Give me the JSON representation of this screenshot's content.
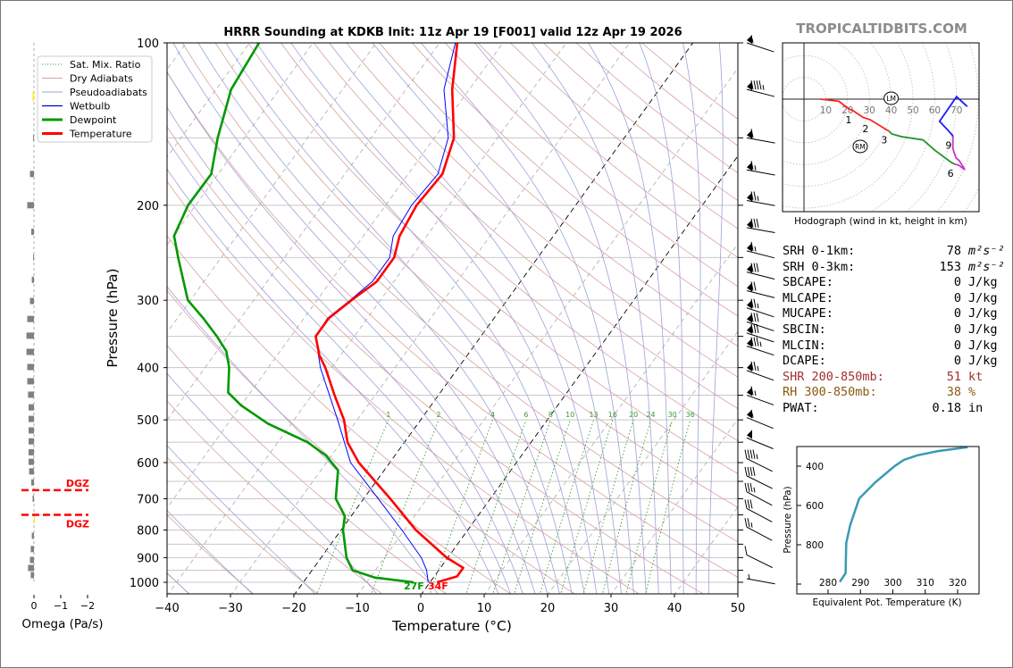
{
  "watermark": "TROPICALTIDBITS.COM",
  "colors": {
    "temperature": "#ff0000",
    "dewpoint": "#009900",
    "wetbulb": "#0000ff",
    "dry_adiabat": "#d9a0a0",
    "moist_adiabat": "#a0a0d8",
    "mixing_ratio": "#3a9a3a",
    "theta_e": "#3a9ab4"
  },
  "legend": {
    "items": [
      {
        "label": "Sat. Mix. Ratio",
        "style": "dotted-green"
      },
      {
        "label": "Dry Adiabats",
        "style": "thin-red"
      },
      {
        "label": "Pseudoadiabats",
        "style": "thin-blue"
      },
      {
        "label": "Wetbulb",
        "style": "blue"
      },
      {
        "label": "Dewpoint",
        "style": "thick-green"
      },
      {
        "label": "Temperature",
        "style": "thick-red"
      }
    ]
  },
  "surface_labels": {
    "dewpoint": "27F",
    "temperature": "34F"
  },
  "omega_panel": {
    "xlabel": "Omega (Pa/s)",
    "xticks": [
      {
        "v": 0,
        "label": "0"
      },
      {
        "v": -1,
        "label": "−1"
      },
      {
        "v": -2,
        "label": "−2"
      }
    ],
    "dgz_label": "DGZ",
    "dgz_bounds_hpa": [
      675,
      750
    ],
    "bars": [
      {
        "p": 125,
        "omega": 0.05,
        "color": "#ffee00"
      },
      {
        "p": 150,
        "omega": 0.03
      },
      {
        "p": 175,
        "omega": 0.15
      },
      {
        "p": 200,
        "omega": 0.25
      },
      {
        "p": 224,
        "omega": 0.1
      },
      {
        "p": 250,
        "omega": 0.03
      },
      {
        "p": 275,
        "omega": 0.08
      },
      {
        "p": 301,
        "omega": 0.15
      },
      {
        "p": 325,
        "omega": 0.25
      },
      {
        "p": 349,
        "omega": 0.28
      },
      {
        "p": 374,
        "omega": 0.28
      },
      {
        "p": 399,
        "omega": 0.25
      },
      {
        "p": 424,
        "omega": 0.25
      },
      {
        "p": 449,
        "omega": 0.22
      },
      {
        "p": 474,
        "omega": 0.2
      },
      {
        "p": 498,
        "omega": 0.2
      },
      {
        "p": 523,
        "omega": 0.2
      },
      {
        "p": 548,
        "omega": 0.2
      },
      {
        "p": 574,
        "omega": 0.2
      },
      {
        "p": 598,
        "omega": 0.2
      },
      {
        "p": 623,
        "omega": 0.18
      },
      {
        "p": 653,
        "omega": 0.1
      },
      {
        "p": 700,
        "omega": 0.05
      },
      {
        "p": 760,
        "omega": -0.03,
        "color": "#ffee00"
      },
      {
        "p": 820,
        "omega": 0.08
      },
      {
        "p": 868,
        "omega": 0.12
      },
      {
        "p": 909,
        "omega": 0.15
      },
      {
        "p": 941,
        "omega": 0.22
      },
      {
        "p": 970,
        "omega": 0.12
      }
    ]
  },
  "chart_data": [
    {
      "type": "line",
      "name": "skew-t",
      "title": "HRRR Sounding at KDKB Init: 11z Apr 19 [F001] valid 12z Apr 19 2026",
      "xlabel": "Temperature (°C)",
      "ylabel": "Pressure (hPa)",
      "xlim": [
        -40,
        50
      ],
      "ylim": [
        1050,
        100
      ],
      "xticks": [
        {
          "v": -40,
          "label": "−40"
        },
        {
          "v": -30,
          "label": "−30"
        },
        {
          "v": -20,
          "label": "−20"
        },
        {
          "v": -10,
          "label": "−10"
        },
        {
          "v": 0,
          "label": "0"
        },
        {
          "v": 10,
          "label": "10"
        },
        {
          "v": 20,
          "label": "20"
        },
        {
          "v": 30,
          "label": "30"
        },
        {
          "v": 40,
          "label": "40"
        },
        {
          "v": 50,
          "label": "50"
        }
      ],
      "yticks": [
        {
          "v": 100,
          "label": "100"
        },
        {
          "v": 200,
          "label": "200"
        },
        {
          "v": 300,
          "label": "300"
        },
        {
          "v": 400,
          "label": "400"
        },
        {
          "v": 500,
          "label": "500"
        },
        {
          "v": 600,
          "label": "600"
        },
        {
          "v": 700,
          "label": "700"
        },
        {
          "v": 800,
          "label": "800"
        },
        {
          "v": 900,
          "label": "900"
        },
        {
          "v": 1000,
          "label": "1000"
        }
      ],
      "isobars": [
        100,
        150,
        200,
        250,
        300,
        350,
        400,
        450,
        500,
        550,
        600,
        650,
        700,
        750,
        800,
        850,
        900,
        950,
        1000
      ],
      "highlight_isotherms": [
        -20,
        0
      ],
      "mixing_ratio_labels": [
        {
          "w": 1,
          "label": "1"
        },
        {
          "w": 2,
          "label": "2"
        },
        {
          "w": 4,
          "label": "4"
        },
        {
          "w": 6,
          "label": "6"
        },
        {
          "w": 8,
          "label": "8"
        },
        {
          "w": 10,
          "label": "10"
        },
        {
          "w": 13,
          "label": "13"
        },
        {
          "w": 16,
          "label": "16"
        },
        {
          "w": 20,
          "label": "20"
        },
        {
          "w": 24,
          "label": "24"
        },
        {
          "w": 30,
          "label": "30"
        },
        {
          "w": 36,
          "label": "36"
        }
      ],
      "series": [
        {
          "name": "Temperature",
          "points": [
            [
              100,
              -57.2
            ],
            [
              122,
              -52.7
            ],
            [
              150,
              -46.9
            ],
            [
              175,
              -44.6
            ],
            [
              200,
              -45.1
            ],
            [
              228,
              -44.3
            ],
            [
              250,
              -42.7
            ],
            [
              277,
              -42.7
            ],
            [
              299,
              -44.5
            ],
            [
              324,
              -46.1
            ],
            [
              350,
              -46.1
            ],
            [
              380,
              -43.3
            ],
            [
              400,
              -41
            ],
            [
              450,
              -36.4
            ],
            [
              500,
              -32.1
            ],
            [
              550,
              -29
            ],
            [
              600,
              -24.9
            ],
            [
              700,
              -15.8
            ],
            [
              800,
              -8.2
            ],
            [
              900,
              -0.2
            ],
            [
              940,
              3.6
            ],
            [
              975,
              3.6
            ],
            [
              1000,
              1.1
            ]
          ]
        },
        {
          "name": "Wetbulb",
          "points": [
            [
              100,
              -57.5
            ],
            [
              122,
              -54
            ],
            [
              150,
              -47.8
            ],
            [
              175,
              -45.3
            ],
            [
              200,
              -45.9
            ],
            [
              228,
              -45.3
            ],
            [
              250,
              -43.4
            ],
            [
              277,
              -43.4
            ],
            [
              300,
              -44.8
            ],
            [
              324,
              -46.3
            ],
            [
              350,
              -46.1
            ],
            [
              400,
              -41.8
            ],
            [
              500,
              -33.1
            ],
            [
              600,
              -26.2
            ],
            [
              700,
              -17.7
            ],
            [
              800,
              -10.4
            ],
            [
              900,
              -4.2
            ],
            [
              950,
              -1.9
            ],
            [
              1000,
              -0.3
            ]
          ]
        },
        {
          "name": "Dewpoint",
          "points": [
            [
              100,
              -88.5
            ],
            [
              122,
              -87.6
            ],
            [
              150,
              -84.2
            ],
            [
              175,
              -81.1
            ],
            [
              200,
              -81.2
            ],
            [
              228,
              -79.9
            ],
            [
              250,
              -76.8
            ],
            [
              300,
              -70.4
            ],
            [
              324,
              -65.9
            ],
            [
              350,
              -61.7
            ],
            [
              373,
              -58.5
            ],
            [
              400,
              -56.2
            ],
            [
              445,
              -53.5
            ],
            [
              470,
              -50
            ],
            [
              508,
              -43.7
            ],
            [
              550,
              -35.3
            ],
            [
              582,
              -30.9
            ],
            [
              620,
              -27.3
            ],
            [
              700,
              -24.4
            ],
            [
              754,
              -21
            ],
            [
              800,
              -19.7
            ],
            [
              900,
              -16
            ],
            [
              950,
              -13.6
            ],
            [
              980,
              -9.3
            ],
            [
              1000,
              -2.6
            ]
          ]
        }
      ],
      "wind_barbs": [
        {
          "p": 100,
          "kt": 55,
          "dir": 280
        },
        {
          "p": 122,
          "kt": 95,
          "dir": 275
        },
        {
          "p": 150,
          "kt": 60,
          "dir": 270
        },
        {
          "p": 172,
          "kt": 65,
          "dir": 270
        },
        {
          "p": 196,
          "kt": 75,
          "dir": 270
        },
        {
          "p": 220,
          "kt": 80,
          "dir": 270
        },
        {
          "p": 243,
          "kt": 65,
          "dir": 275
        },
        {
          "p": 266,
          "kt": 80,
          "dir": 275
        },
        {
          "p": 288,
          "kt": 70,
          "dir": 275
        },
        {
          "p": 310,
          "kt": 75,
          "dir": 280
        },
        {
          "p": 329,
          "kt": 80,
          "dir": 280
        },
        {
          "p": 345,
          "kt": 80,
          "dir": 280
        },
        {
          "p": 365,
          "kt": 85,
          "dir": 280
        },
        {
          "p": 405,
          "kt": 75,
          "dir": 282
        },
        {
          "p": 450,
          "kt": 65,
          "dir": 282
        },
        {
          "p": 495,
          "kt": 55,
          "dir": 285
        },
        {
          "p": 540,
          "kt": 50,
          "dir": 285
        },
        {
          "p": 590,
          "kt": 45,
          "dir": 290
        },
        {
          "p": 635,
          "kt": 40,
          "dir": 290
        },
        {
          "p": 680,
          "kt": 35,
          "dir": 292
        },
        {
          "p": 730,
          "kt": 30,
          "dir": 292
        },
        {
          "p": 790,
          "kt": 25,
          "dir": 292
        },
        {
          "p": 890,
          "kt": 10,
          "dir": 290
        },
        {
          "p": 985,
          "kt": 5,
          "dir": 270
        }
      ]
    },
    {
      "type": "line",
      "name": "hodograph",
      "caption": "Hodograph (wind in kt, height in km)",
      "ring_labels": [
        "10",
        "20",
        "30",
        "40",
        "50",
        "60",
        "70"
      ],
      "segments": [
        {
          "color": "#ff2020",
          "points": [
            [
              7.5,
              0
            ],
            [
              16,
              -1
            ],
            [
              20.5,
              -4.4
            ],
            [
              22.5,
              -5.3
            ],
            [
              27.3,
              -8.5
            ],
            [
              30.3,
              -9.4
            ],
            [
              37.6,
              -13.9
            ],
            [
              38.9,
              -14.6
            ]
          ]
        },
        {
          "color": "#22922a",
          "points": [
            [
              38.9,
              -14.6
            ],
            [
              40.3,
              -16
            ],
            [
              45.1,
              -17.3
            ],
            [
              54.6,
              -18.7
            ],
            [
              60.1,
              -23.5
            ],
            [
              67.6,
              -29
            ],
            [
              69.3,
              -29.9
            ]
          ]
        },
        {
          "color": "#cc33cc",
          "points": [
            [
              69.3,
              -29.9
            ],
            [
              71,
              -30.3
            ],
            [
              73.8,
              -32.4
            ],
            [
              71.3,
              -28.3
            ],
            [
              69.7,
              -26.9
            ],
            [
              68.3,
              -22.8
            ],
            [
              68.3,
              -19.4
            ],
            [
              68.4,
              -17
            ]
          ]
        },
        {
          "color": "#1a1aff",
          "points": [
            [
              68.4,
              -17
            ],
            [
              67,
              -15.3
            ],
            [
              62.2,
              -10.2
            ],
            [
              70,
              1.1
            ],
            [
              74.9,
              -3.4
            ]
          ]
        }
      ],
      "height_markers": [
        {
          "label": "1",
          "u": 22.5,
          "v": -5.3
        },
        {
          "label": "2",
          "u": 30.3,
          "v": -9.4
        },
        {
          "label": "3",
          "u": 38.9,
          "v": -14.6
        },
        {
          "label": "6",
          "u": 69.3,
          "v": -29.9
        },
        {
          "label": "9",
          "u": 68.4,
          "v": -17
        }
      ],
      "storm_motion": [
        {
          "label": "LM",
          "u": 40,
          "v": 0.4
        },
        {
          "label": "RM",
          "u": 25.8,
          "v": -21.7
        }
      ]
    },
    {
      "type": "line",
      "name": "theta-e-profile",
      "xlabel": "Equivalent Pot. Temperature (K)",
      "ylabel": "Pressure (hPa)",
      "xlim": [
        272,
        327
      ],
      "ylim": [
        1050,
        300
      ],
      "xticks": [
        {
          "v": 280,
          "label": "280"
        },
        {
          "v": 290,
          "label": "290"
        },
        {
          "v": 300,
          "label": "300"
        },
        {
          "v": 310,
          "label": "310"
        },
        {
          "v": 320,
          "label": "320"
        }
      ],
      "yticks": [
        {
          "v": 400,
          "label": "400"
        },
        {
          "v": 600,
          "label": "600"
        },
        {
          "v": 800,
          "label": "800"
        },
        {
          "v": 1000,
          "label": ""
        }
      ],
      "points": [
        [
          283.6,
          989
        ],
        [
          285.4,
          944
        ],
        [
          285.6,
          792
        ],
        [
          286.8,
          701
        ],
        [
          289.6,
          565
        ],
        [
          294.6,
          482
        ],
        [
          300.6,
          399
        ],
        [
          303.4,
          368
        ],
        [
          307.5,
          345
        ],
        [
          313.9,
          323
        ],
        [
          323.1,
          303
        ]
      ]
    }
  ],
  "stats": [
    {
      "label": "SRH 0-1km:",
      "value": "78",
      "unit": "m²s⁻²",
      "color": "#000000"
    },
    {
      "label": "SRH 0-3km:",
      "value": "153",
      "unit": "m²s⁻²",
      "color": "#000000"
    },
    {
      "label": "SBCAPE:",
      "value": "0",
      "unit": "J/kg",
      "color": "#000000"
    },
    {
      "label": "MLCAPE:",
      "value": "0",
      "unit": "J/kg",
      "color": "#000000"
    },
    {
      "label": "MUCAPE:",
      "value": "0",
      "unit": "J/kg",
      "color": "#000000"
    },
    {
      "label": "SBCIN:",
      "value": "0",
      "unit": "J/kg",
      "color": "#000000"
    },
    {
      "label": "MLCIN:",
      "value": "0",
      "unit": "J/kg",
      "color": "#000000"
    },
    {
      "label": "DCAPE:",
      "value": "0",
      "unit": "J/kg",
      "color": "#000000"
    },
    {
      "label": "SHR 200-850mb:",
      "value": "51",
      "unit": "kt",
      "color": "#a03030"
    },
    {
      "label": "RH 300-850mb:",
      "value": "38",
      "unit": "%",
      "color": "#8a5a10"
    },
    {
      "label": "PWAT:",
      "value": "0.18",
      "unit": "in",
      "color": "#000000"
    }
  ]
}
